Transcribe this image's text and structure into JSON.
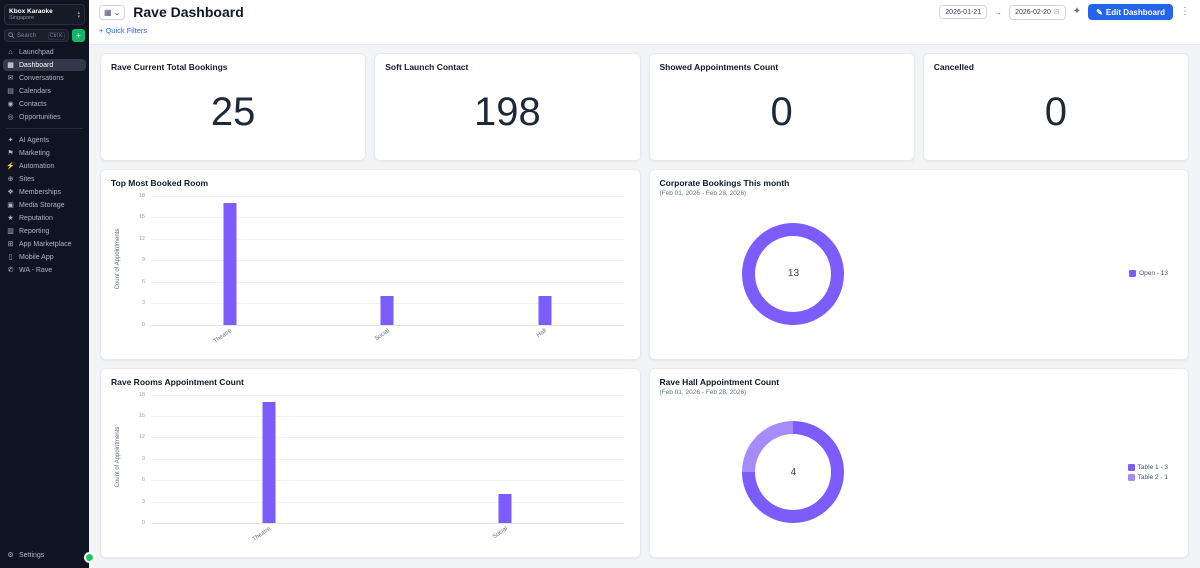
{
  "sidebar": {
    "account": {
      "name": "Kbox Karaoke",
      "location": "Singapore"
    },
    "search": {
      "placeholder": "Search",
      "shortcut": "Ctrl K"
    },
    "items": [
      {
        "label": "Launchpad",
        "icon": "rocket",
        "glyph": "⌂"
      },
      {
        "label": "Dashboard",
        "icon": "dashboard",
        "glyph": "▦",
        "active": true
      },
      {
        "label": "Conversations",
        "icon": "chat",
        "glyph": "✉"
      },
      {
        "label": "Calendars",
        "icon": "calendar",
        "glyph": "▤"
      },
      {
        "label": "Contacts",
        "icon": "contacts",
        "glyph": "◉"
      },
      {
        "label": "Opportunities",
        "icon": "target",
        "glyph": "◎"
      },
      {
        "label": "AI Agents",
        "icon": "ai-agents",
        "glyph": "✦",
        "divider_before": true
      },
      {
        "label": "Marketing",
        "icon": "megaphone",
        "glyph": "⚑"
      },
      {
        "label": "Automation",
        "icon": "bolt",
        "glyph": "⚡"
      },
      {
        "label": "Sites",
        "icon": "globe",
        "glyph": "⊕"
      },
      {
        "label": "Memberships",
        "icon": "memberships",
        "glyph": "❖"
      },
      {
        "label": "Media Storage",
        "icon": "folder",
        "glyph": "▣"
      },
      {
        "label": "Reputation",
        "icon": "star",
        "glyph": "★"
      },
      {
        "label": "Reporting",
        "icon": "bar-chart",
        "glyph": "▥"
      },
      {
        "label": "App Marketplace",
        "icon": "marketplace",
        "glyph": "⊞"
      },
      {
        "label": "Mobile App",
        "icon": "mobile",
        "glyph": "▯"
      },
      {
        "label": "WA - Rave",
        "icon": "whatsapp",
        "glyph": "✆"
      }
    ],
    "settings": {
      "label": "Settings",
      "icon": "gear",
      "glyph": "⚙"
    }
  },
  "header": {
    "title": "Rave Dashboard",
    "quick_filters_label": "+ Quick Filters",
    "date_from": "2026-01-21",
    "date_to": "2026-02-20",
    "edit_button_label": "Edit Dashboard"
  },
  "icons": {
    "grid": "▦",
    "chevron_down": "⌄",
    "caret_up": "▴",
    "caret_down": "▾",
    "calendar": "⊟",
    "arrow_right": "→",
    "wand": "✦",
    "pencil": "✎",
    "kebab": "⋮",
    "plus": "+"
  },
  "kpis": [
    {
      "title": "Rave Current Total Bookings",
      "value": "25"
    },
    {
      "title": "Soft Launch Contact",
      "value": "198"
    },
    {
      "title": "Showed Appointments Count",
      "value": "0"
    },
    {
      "title": "Cancelled",
      "value": "0"
    }
  ],
  "chart_data": [
    {
      "type": "bar",
      "title": "Top Most Booked Room",
      "ylabel": "Count of Appointments",
      "categories": [
        "Theatre",
        "Social",
        "Hall"
      ],
      "values": [
        17,
        4,
        4
      ],
      "yticks": [
        0,
        3,
        6,
        9,
        12,
        15,
        18
      ],
      "ylim": [
        0,
        18
      ],
      "color": "#7C5CFC",
      "grid": true,
      "legend": "none"
    },
    {
      "type": "pie",
      "title": "Corporate Bookings This month",
      "subtitle": "(Feb 01, 2026 - Feb 28, 2026)",
      "center_value": "13",
      "slices": [
        {
          "label": "Open - 13",
          "value": 13,
          "color": "#7C5CFC"
        }
      ],
      "legend_position": "right"
    },
    {
      "type": "bar",
      "title": "Rave Rooms Appointment Count",
      "ylabel": "Count of Appointments",
      "categories": [
        "Theatre",
        "Social"
      ],
      "values": [
        17,
        4
      ],
      "yticks": [
        0,
        3,
        6,
        9,
        12,
        15,
        18
      ],
      "ylim": [
        0,
        18
      ],
      "color": "#7C5CFC",
      "grid": true,
      "legend": "none"
    },
    {
      "type": "pie",
      "title": "Rave Hall Appointment Count",
      "subtitle": "(Feb 01, 2026 - Feb 28, 2026)",
      "center_value": "4",
      "slices": [
        {
          "label": "Table 1 - 3",
          "value": 3,
          "color": "#7C5CFC"
        },
        {
          "label": "Table 2 - 1",
          "value": 1,
          "color": "#A78BFA"
        }
      ],
      "legend_position": "right"
    }
  ]
}
